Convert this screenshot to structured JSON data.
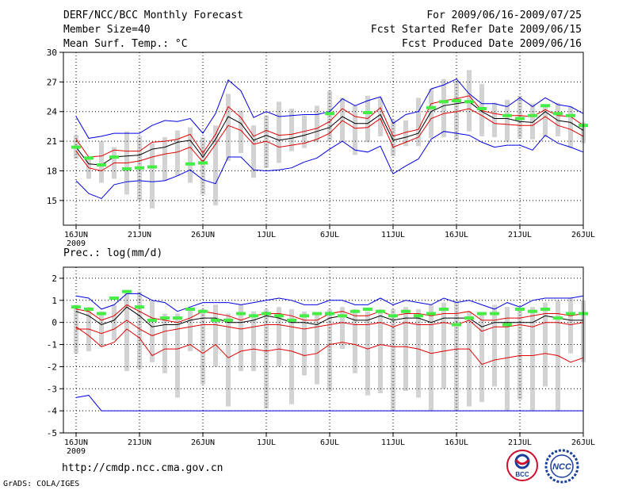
{
  "header": {
    "title": "DERF/NCC/BCC Monthly Forecast",
    "member_size": "Member Size=40",
    "variable": "Mean Surf. Temp.: °C",
    "period": "For 2009/06/16-2009/07/25",
    "refer_date": "Fcst Started Refer Date 2009/06/15",
    "produced_date": "Fcst Produced Date 2009/06/16"
  },
  "footer": {
    "url": "http://cmdp.ncc.cma.gov.cn",
    "credit": "GrADS: COLA/IGES",
    "logo_bcc": "BCC",
    "logo_ncc": "NCC"
  },
  "colors": {
    "ensemble_mean": "#000000",
    "spread": "#e00000",
    "extreme": "#0000e0",
    "observed": "#44ee44",
    "box": "#d3d3d3"
  },
  "chart_data": [
    {
      "type": "line",
      "title": "Mean Surf. Temp.: °C",
      "x_labels": [
        "16JUN",
        "21JUN",
        "26JUN",
        "1JUL",
        "6JUL",
        "11JUL",
        "16JUL",
        "21JUL",
        "26JUL"
      ],
      "x_label_days": [
        0,
        5,
        10,
        15,
        20,
        25,
        30,
        35,
        40
      ],
      "year_label": "2009",
      "xlim": [
        -1,
        40
      ],
      "ylim": [
        12.5,
        30
      ],
      "yticks": [
        15,
        18,
        21,
        24,
        27,
        30
      ],
      "grid": true,
      "series": [
        {
          "name": "max",
          "color": "blue",
          "values": [
            23.5,
            21.3,
            21.5,
            21.8,
            21.8,
            21.8,
            22.6,
            23.1,
            23.0,
            23.3,
            21.8,
            23.8,
            27.2,
            26.1,
            23.4,
            24.0,
            23.5,
            23.6,
            23.7,
            23.7,
            24.0,
            25.3,
            24.6,
            25.1,
            25.5,
            22.8,
            23.7,
            24.0,
            26.3,
            26.7,
            27.3,
            25.8,
            24.8,
            24.8,
            24.5,
            25.4,
            24.5,
            25.4,
            24.7,
            24.5,
            23.8
          ]
        },
        {
          "name": "upper",
          "color": "red",
          "values": [
            21.2,
            19.4,
            19.5,
            20.1,
            20.0,
            20.0,
            20.9,
            21.0,
            21.2,
            21.7,
            19.8,
            21.7,
            24.5,
            23.4,
            21.5,
            22.1,
            21.6,
            21.7,
            22.0,
            22.3,
            23.0,
            24.3,
            23.5,
            23.3,
            24.4,
            21.5,
            21.9,
            22.2,
            24.8,
            25.1,
            25.3,
            25.6,
            24.1,
            23.8,
            23.6,
            23.6,
            23.5,
            24.2,
            23.6,
            23.5,
            22.6
          ]
        },
        {
          "name": "mean",
          "color": "black",
          "values": [
            20.4,
            18.7,
            18.6,
            19.4,
            19.5,
            19.6,
            20.2,
            20.4,
            20.9,
            21.1,
            19.4,
            21.2,
            23.5,
            22.8,
            21.1,
            21.6,
            21.1,
            21.3,
            21.6,
            22.0,
            22.4,
            23.5,
            22.8,
            22.8,
            23.7,
            21.1,
            21.4,
            21.8,
            24.0,
            24.6,
            24.8,
            25.0,
            24.0,
            23.3,
            23.3,
            23.0,
            22.9,
            24.0,
            23.1,
            22.9,
            22.1
          ]
        },
        {
          "name": "lower",
          "color": "red",
          "values": [
            20.0,
            18.3,
            18.0,
            18.8,
            18.8,
            19.0,
            19.4,
            19.7,
            19.9,
            20.4,
            18.9,
            20.7,
            22.6,
            22.1,
            20.7,
            21.0,
            20.4,
            20.6,
            20.8,
            21.2,
            21.8,
            23.1,
            22.3,
            22.4,
            23.3,
            20.4,
            20.9,
            21.4,
            23.3,
            23.8,
            24.0,
            24.3,
            23.6,
            22.8,
            22.7,
            22.6,
            22.6,
            23.5,
            22.6,
            22.2,
            21.5
          ]
        },
        {
          "name": "min",
          "color": "blue",
          "values": [
            17.0,
            15.7,
            15.2,
            16.6,
            16.9,
            17.0,
            16.9,
            17.0,
            17.5,
            18.1,
            17.1,
            16.7,
            19.4,
            19.4,
            18.1,
            18.0,
            18.1,
            18.3,
            18.9,
            19.3,
            20.2,
            21.0,
            20.1,
            19.9,
            20.5,
            17.7,
            18.5,
            19.2,
            21.2,
            22.0,
            21.8,
            21.6,
            20.9,
            20.4,
            20.6,
            20.6,
            20.1,
            21.6,
            20.8,
            20.4,
            19.9
          ]
        }
      ],
      "box_range": [
        [
          19.2,
          21.6
        ],
        [
          17.2,
          19.3
        ],
        [
          16.8,
          21.0
        ],
        [
          17.2,
          20.4
        ],
        [
          15.6,
          22.0
        ],
        [
          15.0,
          21.5
        ],
        [
          14.2,
          20.8
        ],
        [
          17.0,
          21.4
        ],
        [
          17.5,
          22.1
        ],
        [
          16.8,
          22.4
        ],
        [
          15.6,
          21.4
        ],
        [
          14.5,
          22.6
        ],
        [
          19.0,
          25.8
        ],
        [
          19.8,
          24.1
        ],
        [
          17.3,
          22.6
        ],
        [
          18.3,
          23.6
        ],
        [
          18.8,
          25.0
        ],
        [
          20.0,
          24.3
        ],
        [
          20.3,
          23.6
        ],
        [
          20.9,
          24.6
        ],
        [
          21.0,
          26.1
        ],
        [
          20.9,
          25.4
        ],
        [
          19.6,
          24.6
        ],
        [
          20.9,
          25.6
        ],
        [
          21.5,
          25.4
        ],
        [
          19.5,
          23.2
        ],
        [
          20.5,
          23.1
        ],
        [
          20.5,
          25.4
        ],
        [
          21.3,
          26.3
        ],
        [
          21.4,
          27.3
        ],
        [
          21.1,
          27.1
        ],
        [
          22.0,
          28.2
        ],
        [
          21.5,
          26.8
        ],
        [
          21.4,
          24.9
        ],
        [
          20.9,
          25.2
        ],
        [
          21.3,
          25.6
        ],
        [
          21.2,
          24.8
        ],
        [
          21.4,
          24.6
        ],
        [
          21.5,
          24.9
        ],
        [
          20.3,
          24.5
        ],
        [
          20.8,
          22.9
        ]
      ],
      "observed": [
        20.4,
        19.3,
        18.6,
        19.4,
        18.2,
        18.3,
        18.4,
        null,
        null,
        18.7,
        18.8,
        null,
        null,
        null,
        null,
        null,
        null,
        null,
        null,
        null,
        23.8,
        null,
        null,
        23.9,
        null,
        null,
        null,
        null,
        24.4,
        25.0,
        25.1,
        25.0,
        24.3,
        null,
        23.6,
        23.3,
        23.6,
        24.6,
        23.8,
        23.6,
        22.6
      ]
    },
    {
      "type": "line",
      "title": "Prec.: log(mm/d)",
      "x_labels": [
        "16JUN",
        "21JUN",
        "26JUN",
        "1JUL",
        "6JUL",
        "11JUL",
        "16JUL",
        "21JUL",
        "26JUL"
      ],
      "x_label_days": [
        0,
        5,
        10,
        15,
        20,
        25,
        30,
        35,
        40
      ],
      "year_label": "2009",
      "xlim": [
        -1,
        40
      ],
      "ylim": [
        -5,
        2.5
      ],
      "yticks": [
        -5,
        -4,
        -3,
        -2,
        -1,
        0,
        1,
        2
      ],
      "grid": true,
      "series": [
        {
          "name": "max",
          "color": "blue",
          "values": [
            1.2,
            1.1,
            0.6,
            0.8,
            1.3,
            1.3,
            1.0,
            0.9,
            0.5,
            0.7,
            0.9,
            0.9,
            0.9,
            0.8,
            0.9,
            1.0,
            1.1,
            1.0,
            0.8,
            0.8,
            1.0,
            1.0,
            0.8,
            0.8,
            1.1,
            0.8,
            1.0,
            0.9,
            0.8,
            1.1,
            0.9,
            1.0,
            0.8,
            0.6,
            0.9,
            0.7,
            1.0,
            1.1,
            1.1,
            1.1,
            1.2
          ]
        },
        {
          "name": "upper",
          "color": "red",
          "values": [
            0.6,
            0.5,
            0.1,
            0.3,
            0.8,
            0.5,
            0.2,
            0.1,
            0.0,
            0.2,
            0.5,
            0.4,
            0.3,
            0.1,
            0.3,
            0.4,
            0.4,
            0.3,
            0.1,
            0.1,
            0.4,
            0.5,
            0.3,
            0.3,
            0.5,
            0.3,
            0.4,
            0.4,
            0.3,
            0.4,
            0.4,
            0.5,
            0.1,
            0.1,
            0.2,
            0.2,
            0.3,
            0.4,
            0.4,
            0.3,
            0.4
          ]
        },
        {
          "name": "mean",
          "color": "black",
          "values": [
            0.5,
            0.3,
            -0.1,
            0.1,
            0.7,
            0.3,
            -0.2,
            -0.1,
            -0.1,
            0.1,
            0.2,
            0.2,
            0.0,
            0.0,
            0.1,
            0.3,
            0.2,
            0.0,
            0.0,
            -0.1,
            0.2,
            0.3,
            0.1,
            0.1,
            0.3,
            0.1,
            0.2,
            0.2,
            0.0,
            0.2,
            0.2,
            0.2,
            -0.2,
            0.0,
            0.0,
            0.0,
            0.0,
            0.3,
            0.2,
            0.1,
            0.1
          ]
        },
        {
          "name": "lower",
          "color": "red",
          "values": [
            -0.3,
            -0.3,
            -0.5,
            -0.3,
            0.1,
            -0.3,
            -0.6,
            -0.4,
            -0.3,
            -0.2,
            -0.1,
            -0.1,
            -0.2,
            -0.3,
            -0.2,
            -0.1,
            -0.1,
            -0.2,
            -0.3,
            -0.2,
            -0.1,
            0.0,
            -0.1,
            -0.1,
            0.0,
            -0.2,
            0.0,
            -0.1,
            -0.1,
            0.0,
            -0.1,
            0.1,
            -0.4,
            -0.2,
            -0.2,
            -0.1,
            -0.2,
            0.0,
            0.0,
            -0.1,
            0.0
          ]
        },
        {
          "name": "min",
          "color": "red",
          "values": [
            -0.2,
            -0.6,
            -1.1,
            -0.9,
            -0.3,
            -0.7,
            -1.5,
            -1.2,
            -1.2,
            -1.0,
            -1.4,
            -1.0,
            -1.6,
            -1.3,
            -1.2,
            -1.3,
            -1.2,
            -1.3,
            -1.5,
            -1.4,
            -1.0,
            -0.9,
            -1.0,
            -1.2,
            -1.0,
            -1.1,
            -1.1,
            -1.2,
            -1.4,
            -1.3,
            -1.2,
            -1.2,
            -1.9,
            -1.7,
            -1.6,
            -1.5,
            -1.5,
            -1.4,
            -1.5,
            -1.8,
            -1.6
          ]
        },
        {
          "name": "bottom",
          "color": "blue",
          "values": [
            -3.4,
            -3.3,
            -4.0,
            -4.0,
            -4.0,
            -4.0,
            -4.0,
            -4.0,
            -4.0,
            -4.0,
            -4.0,
            -4.0,
            -4.0,
            -4.0,
            -4.0,
            -4.0,
            -4.0,
            -4.0,
            -4.0,
            -4.0,
            -4.0,
            -4.0,
            -4.0,
            -4.0,
            -4.0,
            -4.0,
            -4.0,
            -4.0,
            -4.0,
            -4.0,
            -4.0,
            -4.0,
            -4.0,
            -4.0,
            -4.0,
            -4.0,
            -4.0,
            -4.0,
            -4.0,
            -4.0,
            -4.0
          ]
        }
      ],
      "box_range": [
        [
          -1.4,
          0.8
        ],
        [
          -1.3,
          0.7
        ],
        [
          -1.1,
          0.5
        ],
        [
          -0.8,
          0.8
        ],
        [
          -2.2,
          1.4
        ],
        [
          -2.1,
          1.4
        ],
        [
          -1.8,
          1.0
        ],
        [
          -2.3,
          0.4
        ],
        [
          -3.4,
          0.4
        ],
        [
          -1.3,
          0.6
        ],
        [
          -2.8,
          0.6
        ],
        [
          -2.0,
          0.8
        ],
        [
          -3.8,
          0.4
        ],
        [
          -2.2,
          0.8
        ],
        [
          -2.2,
          0.5
        ],
        [
          -3.9,
          0.6
        ],
        [
          -2.0,
          0.7
        ],
        [
          -3.7,
          0.6
        ],
        [
          -2.4,
          0.5
        ],
        [
          -2.8,
          0.4
        ],
        [
          -3.1,
          0.6
        ],
        [
          -1.2,
          0.7
        ],
        [
          -2.3,
          0.6
        ],
        [
          -3.3,
          0.5
        ],
        [
          -3.2,
          0.6
        ],
        [
          -4.0,
          0.6
        ],
        [
          -3.1,
          0.7
        ],
        [
          -3.4,
          0.6
        ],
        [
          -4.0,
          0.8
        ],
        [
          -3.0,
          0.9
        ],
        [
          -4.0,
          1.0
        ],
        [
          -3.8,
          0.5
        ],
        [
          -3.6,
          0.4
        ],
        [
          -2.9,
          0.8
        ],
        [
          -4.0,
          0.7
        ],
        [
          -3.5,
          0.6
        ],
        [
          -4.0,
          0.7
        ],
        [
          -2.9,
          0.9
        ],
        [
          -4.0,
          1.0
        ],
        [
          -1.4,
          1.1
        ],
        [
          -1.8,
          1.0
        ]
      ],
      "observed": [
        0.7,
        0.6,
        0.4,
        1.1,
        1.4,
        0.7,
        0.1,
        0.2,
        0.2,
        0.6,
        0.5,
        0.1,
        0.1,
        0.4,
        0.3,
        0.4,
        0.3,
        0.1,
        0.3,
        0.4,
        0.4,
        0.3,
        0.5,
        0.6,
        0.5,
        0.3,
        0.5,
        0.3,
        0.4,
        0.6,
        -0.1,
        0.2,
        0.4,
        0.4,
        -0.1,
        0.6,
        0.5,
        0.6,
        0.2,
        0.4,
        0.4
      ]
    }
  ]
}
